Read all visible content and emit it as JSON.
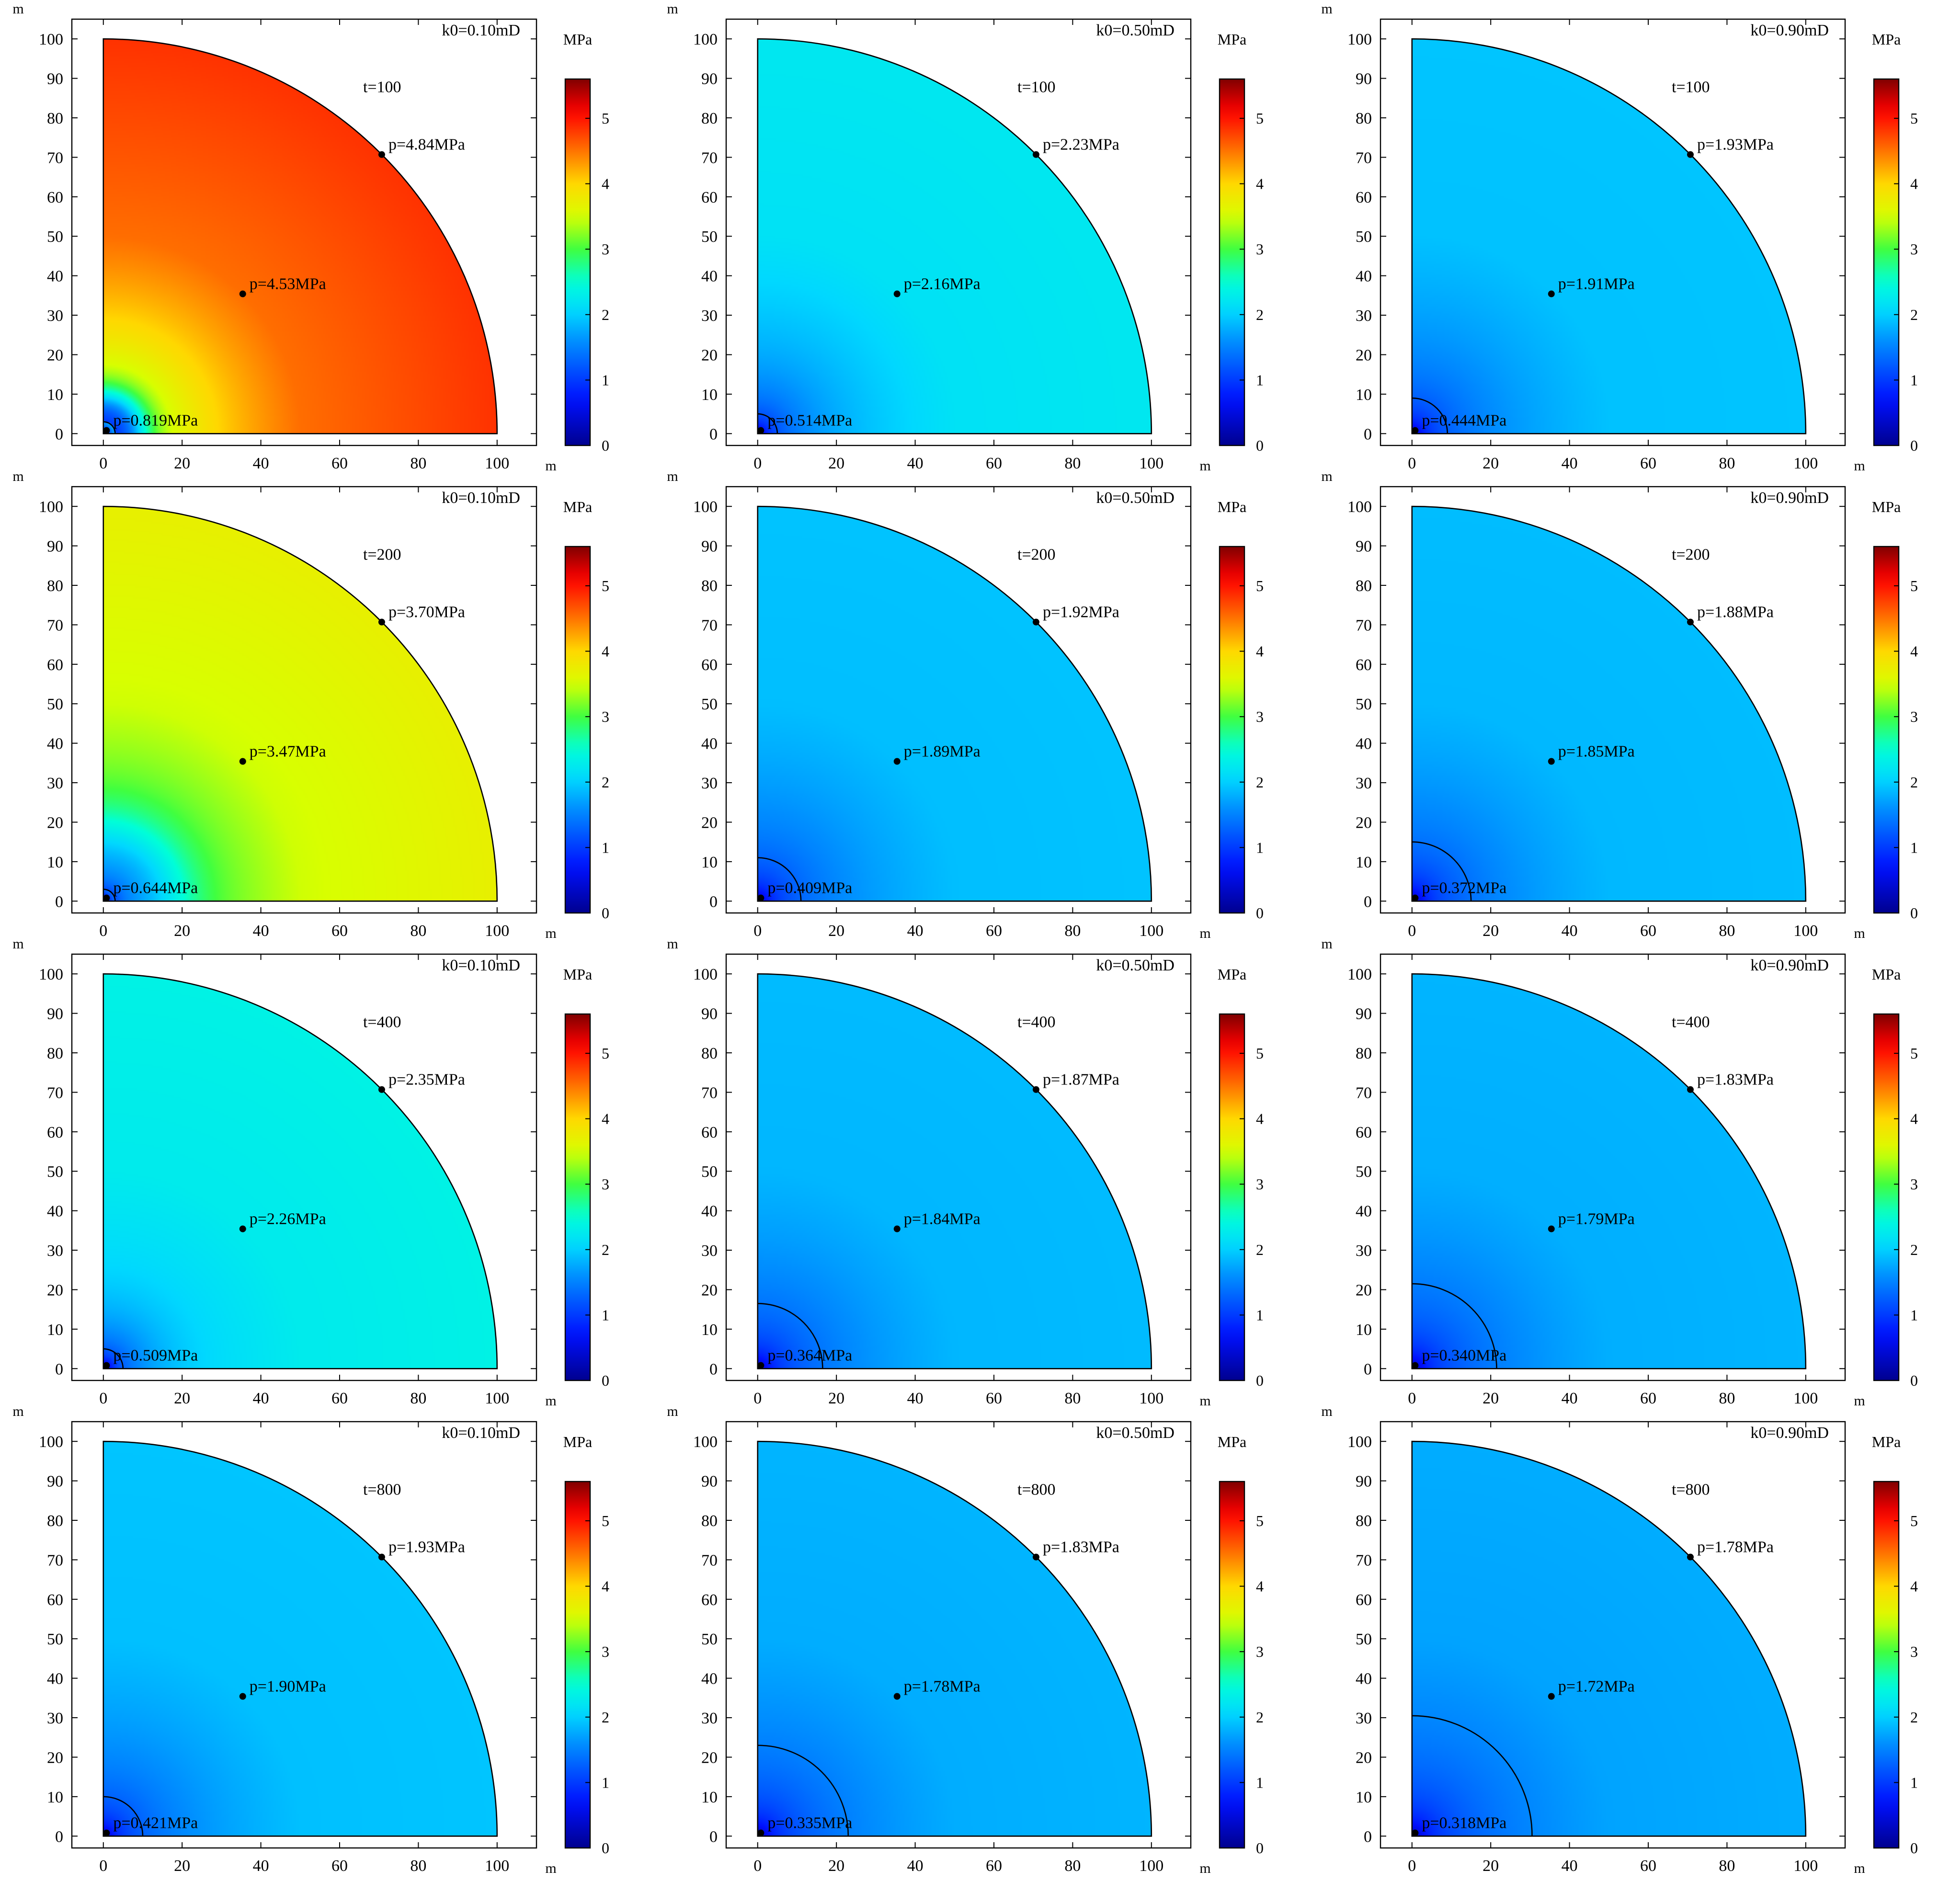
{
  "chart_data": {
    "type": "heatmap",
    "description_units": "quarter-disk pressure field",
    "x_unit": "m",
    "y_unit": "m",
    "colorbar_label": "MPa",
    "colorbar_range": [
      0,
      5.6
    ],
    "colorbar_ticks": [
      "0",
      "1",
      "2",
      "3",
      "4",
      "5"
    ],
    "x_ticks": [
      "0",
      "20",
      "40",
      "60",
      "80",
      "100"
    ],
    "y_ticks": [
      "0",
      "10",
      "20",
      "30",
      "40",
      "50",
      "60",
      "70",
      "80",
      "90",
      "100"
    ],
    "xlim": [
      -8,
      110
    ],
    "ylim": [
      -3,
      105
    ],
    "domain_radius": 100,
    "probe_points": [
      {
        "x": 0.8,
        "y": 0.8
      },
      {
        "x": 35.4,
        "y": 35.4
      },
      {
        "x": 70.7,
        "y": 70.7
      }
    ],
    "panels": [
      {
        "k_label": "k0=0.10mD",
        "t_label": "t=100",
        "p_well": 0.819,
        "p_mid": 4.53,
        "p_edge": 4.84,
        "p_well_label": "p=0.819MPa",
        "p_mid_label": "p=4.53MPa",
        "p_edge_label": "p=4.84MPa",
        "contour_radius": 3,
        "trough_radius": 6
      },
      {
        "k_label": "k0=0.50mD",
        "t_label": "t=100",
        "p_well": 0.514,
        "p_mid": 2.16,
        "p_edge": 2.23,
        "p_well_label": "p=0.514MPa",
        "p_mid_label": "p=2.16MPa",
        "p_edge_label": "p=2.23MPa",
        "contour_radius": 5,
        "trough_radius": 0
      },
      {
        "k_label": "k0=0.90mD",
        "t_label": "t=100",
        "p_well": 0.444,
        "p_mid": 1.91,
        "p_edge": 1.93,
        "p_well_label": "p=0.444MPa",
        "p_mid_label": "p=1.91MPa",
        "p_edge_label": "p=1.93MPa",
        "contour_radius": 9,
        "trough_radius": 0
      },
      {
        "k_label": "k0=0.10mD",
        "t_label": "t=200",
        "p_well": 0.644,
        "p_mid": 3.47,
        "p_edge": 3.7,
        "p_well_label": "p=0.644MPa",
        "p_mid_label": "p=3.47MPa",
        "p_edge_label": "p=3.70MPa",
        "contour_radius": 3,
        "trough_radius": 12
      },
      {
        "k_label": "k0=0.50mD",
        "t_label": "t=200",
        "p_well": 0.409,
        "p_mid": 1.89,
        "p_edge": 1.92,
        "p_well_label": "p=0.409MPa",
        "p_mid_label": "p=1.89MPa",
        "p_edge_label": "p=1.92MPa",
        "contour_radius": 11,
        "trough_radius": 0
      },
      {
        "k_label": "k0=0.90mD",
        "t_label": "t=200",
        "p_well": 0.372,
        "p_mid": 1.85,
        "p_edge": 1.88,
        "p_well_label": "p=0.372MPa",
        "p_mid_label": "p=1.85MPa",
        "p_edge_label": "p=1.88MPa",
        "contour_radius": 15,
        "trough_radius": 0
      },
      {
        "k_label": "k0=0.10mD",
        "t_label": "t=400",
        "p_well": 0.509,
        "p_mid": 2.26,
        "p_edge": 2.35,
        "p_well_label": "p=0.509MPa",
        "p_mid_label": "p=2.26MPa",
        "p_edge_label": "p=2.35MPa",
        "contour_radius": 5,
        "trough_radius": 20
      },
      {
        "k_label": "k0=0.50mD",
        "t_label": "t=400",
        "p_well": 0.364,
        "p_mid": 1.84,
        "p_edge": 1.87,
        "p_well_label": "p=0.364MPa",
        "p_mid_label": "p=1.84MPa",
        "p_edge_label": "p=1.87MPa",
        "contour_radius": 16.5,
        "trough_radius": 0
      },
      {
        "k_label": "k0=0.90mD",
        "t_label": "t=400",
        "p_well": 0.34,
        "p_mid": 1.79,
        "p_edge": 1.83,
        "p_well_label": "p=0.340MPa",
        "p_mid_label": "p=1.79MPa",
        "p_edge_label": "p=1.83MPa",
        "contour_radius": 21.5,
        "trough_radius": 0
      },
      {
        "k_label": "k0=0.10mD",
        "t_label": "t=800",
        "p_well": 0.421,
        "p_mid": 1.9,
        "p_edge": 1.93,
        "p_well_label": "p=0.421MPa",
        "p_mid_label": "p=1.90MPa",
        "p_edge_label": "p=1.93MPa",
        "contour_radius": 10,
        "trough_radius": 0
      },
      {
        "k_label": "k0=0.50mD",
        "t_label": "t=800",
        "p_well": 0.335,
        "p_mid": 1.78,
        "p_edge": 1.83,
        "p_well_label": "p=0.335MPa",
        "p_mid_label": "p=1.78MPa",
        "p_edge_label": "p=1.83MPa",
        "contour_radius": 23,
        "trough_radius": 0
      },
      {
        "k_label": "k0=0.90mD",
        "t_label": "t=800",
        "p_well": 0.318,
        "p_mid": 1.72,
        "p_edge": 1.78,
        "p_well_label": "p=0.318MPa",
        "p_mid_label": "p=1.72MPa",
        "p_edge_label": "p=1.78MPa",
        "contour_radius": 30.5,
        "trough_radius": 0
      }
    ],
    "colormap_stops": [
      {
        "v": 0.0,
        "color": "#00008f"
      },
      {
        "v": 0.7,
        "color": "#0010ff"
      },
      {
        "v": 1.6,
        "color": "#0090ff"
      },
      {
        "v": 2.05,
        "color": "#00d8ff"
      },
      {
        "v": 2.5,
        "color": "#00ffd8"
      },
      {
        "v": 3.0,
        "color": "#40ff40"
      },
      {
        "v": 3.5,
        "color": "#d8ff00"
      },
      {
        "v": 4.0,
        "color": "#ffd800"
      },
      {
        "v": 4.6,
        "color": "#ff6000"
      },
      {
        "v": 5.1,
        "color": "#ff0000"
      },
      {
        "v": 5.6,
        "color": "#800000"
      }
    ]
  }
}
